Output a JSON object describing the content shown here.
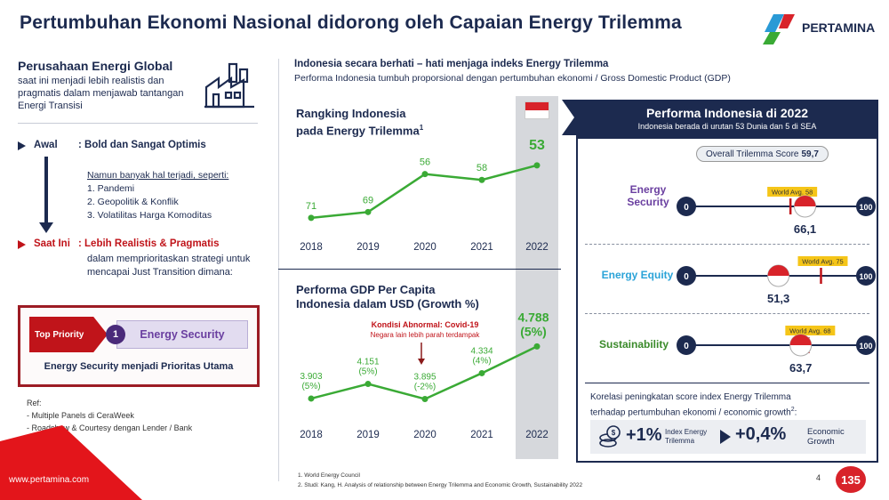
{
  "header": {
    "title": "Pertumbuhan Ekonomi Nasional didorong oleh Capaian Energy Trilemma",
    "logo_text": "PERTAMINA"
  },
  "left": {
    "title": "Perusahaan Energi Global",
    "desc": "saat ini menjadi lebih realistis dan pragmatis dalam menjawab tantangan Energi Transisi",
    "awal_label": "Awal",
    "awal_text": ": Bold dan Sangat Optimis",
    "note_lead": "Namun banyak hal terjadi, seperti:",
    "note_items": [
      "1.  Pandemi",
      "2.  Geopolitik & Konflik",
      "3.  Volatilitas  Harga Komoditas"
    ],
    "saat_label": "Saat Ini",
    "saat_text": ": Lebih Realistis & Pragmatis",
    "saat_desc": "dalam memprioritaskan strategi untuk mencapai Just Transition dimana:",
    "top_priority": "Top Priority",
    "priority_num": "1",
    "priority_item": "Energy Security",
    "priority_caption": "Energy Security menjadi Prioritas Utama",
    "ref_title": "Ref:",
    "ref_items": [
      "-   Multiple Panels di CeraWeek",
      "-   Roadshow & Courtesy dengan Lender / Bank"
    ],
    "website": "www.pertamina.com"
  },
  "center": {
    "headline": "Indonesia secara berhati – hati menjaga indeks Energy Trilemma",
    "subline": "Performa Indonesia tumbuh proporsional dengan pertumbuhan ekonomi / Gross Domestic Product (GDP)",
    "chart1_title_l1": "Rangking Indonesia",
    "chart1_title_l2": "pada Energy  Trilemma",
    "chart1_title_sup": "1",
    "chart2_title_l1": "Performa GDP Per Capita",
    "chart2_title_l2": "Indonesia  dalam USD (Growth %)",
    "covid_title": "Kondisi Abnormal: Covid-19",
    "covid_sub": "Negara lain lebih parah terdampak"
  },
  "chart_data": [
    {
      "type": "line",
      "title": "Rangking Indonesia pada Energy Trilemma",
      "x": [
        "2018",
        "2019",
        "2020",
        "2021",
        "2022"
      ],
      "values": [
        71,
        69,
        56,
        58,
        53
      ],
      "labels": [
        "71",
        "69",
        "56",
        "58",
        "53"
      ],
      "color": "#3aaa35",
      "highlight_color": "#3aaa35"
    },
    {
      "type": "line",
      "title": "Performa GDP Per Capita Indonesia dalam USD (Growth %)",
      "x": [
        "2018",
        "2019",
        "2020",
        "2021",
        "2022"
      ],
      "values": [
        3903,
        4151,
        3895,
        4334,
        4788
      ],
      "labels": [
        "3.903",
        "4.151",
        "3.895",
        "4.334",
        "4.788"
      ],
      "growth": [
        "(5%)",
        "(5%)",
        "(-2%)",
        "(4%)",
        "(5%)"
      ],
      "color": "#3aaa35"
    }
  ],
  "panel": {
    "title": "Performa Indonesia di 2022",
    "subtitle": "Indonesia  berada di urutan 53 Dunia dan 5 di SEA",
    "overall_label": "Overall  Trilemma  Score",
    "overall_value": "59,7",
    "scale_min": "0",
    "scale_max": "100",
    "world_avg_prefix": "World Avg.",
    "metrics": [
      {
        "label_l1": "Energy",
        "label_l2": "Security",
        "score": 66.1,
        "score_text": "66,1",
        "world_avg": 58,
        "world_avg_text": "World Avg. 58",
        "color": "#6a3fa0"
      },
      {
        "label_l1": "Energy Equity",
        "label_l2": "",
        "score": 51.3,
        "score_text": "51,3",
        "world_avg": 75,
        "world_avg_text": "World Avg. 75",
        "color": "#2aa3d8"
      },
      {
        "label_l1": "Sustainability",
        "label_l2": "",
        "score": 63.7,
        "score_text": "63,7",
        "world_avg": 68,
        "world_avg_text": "World Avg. 68",
        "color": "#3a8a2a"
      }
    ],
    "korelasi_l1": "Korelasi  peningkatan score index Energy Trilemma",
    "korelasi_l2": "terhadap  pertumbuhan ekonomi  / economic growth",
    "korelasi_sup": "2",
    "g1": "+1%",
    "g1_sub_l1": "Index Energy",
    "g1_sub_l2": "Trilemma",
    "g2": "+0,4%",
    "g2_sub_l1": "Economic",
    "g2_sub_l2": "Growth"
  },
  "footer": {
    "fn1": "1.      World  Energy  Council",
    "fn2": "2.      Studi: Kang, H. Analysis of relationship  between  Energy Trilemma  and Economic Growth, Sustainability  2022",
    "page": "4",
    "badge": "135"
  },
  "colors": {
    "navy": "#1c2a4f",
    "red": "#c0141a",
    "green": "#3aaa35",
    "purple": "#6a3fa0"
  }
}
